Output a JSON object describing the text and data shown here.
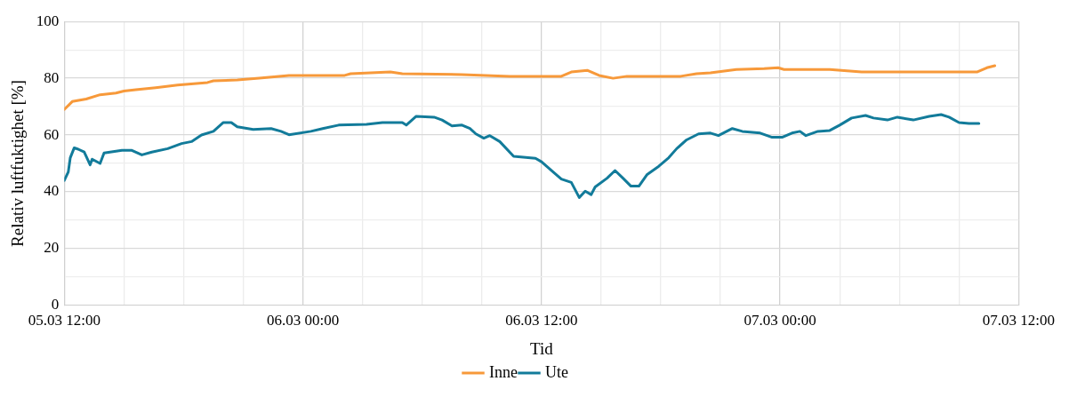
{
  "chart_data": {
    "type": "line",
    "xlabel": "Tid",
    "ylabel": "Relativ luftfuktighet [%]",
    "xlim": [
      "--03-05T12:00",
      "--03-07T12:00"
    ],
    "ylim": [
      0,
      100
    ],
    "xticks": [
      {
        "value": "--03-05T12:00",
        "label": "05.03 12:00"
      },
      {
        "value": "--03-05T15:00",
        "label": null
      },
      {
        "value": "--03-05T18:00",
        "label": null
      },
      {
        "value": "--03-05T21:00",
        "label": null
      },
      {
        "value": "--03-06T00:00",
        "label": "06.03 00:00"
      },
      {
        "value": "--03-06T03:00",
        "label": null
      },
      {
        "value": "--03-06T06:00",
        "label": null
      },
      {
        "value": "--03-06T09:00",
        "label": null
      },
      {
        "value": "--03-06T12:00",
        "label": "06.03 12:00"
      },
      {
        "value": "--03-06T15:00",
        "label": null
      },
      {
        "value": "--03-06T18:00",
        "label": null
      },
      {
        "value": "--03-06T21:00",
        "label": null
      },
      {
        "value": "--03-07T00:00",
        "label": "07.03 00:00"
      },
      {
        "value": "--03-07T03:00",
        "label": null
      },
      {
        "value": "--03-07T06:00",
        "label": null
      },
      {
        "value": "--03-07T09:00",
        "label": null
      },
      {
        "value": "--03-07T12:00",
        "label": "07.03 12:00"
      }
    ],
    "yticks": [
      0,
      {
        "value": 10,
        "label": null
      },
      20,
      {
        "value": 30,
        "label": null
      },
      40,
      {
        "value": 50,
        "label": null
      },
      60,
      {
        "value": 70,
        "label": null
      },
      80,
      {
        "value": 90,
        "label": null
      },
      100
    ],
    "grid": true,
    "legend": "bottom",
    "marker": "none",
    "line_style": "solid",
    "series": [
      {
        "name": "Inne",
        "color": "#f7993a",
        "x": [
          "--03-05T12:00",
          "--03-05T12:24",
          "--03-05T13:06",
          "--03-05T13:48",
          "--03-05T14:36",
          "--03-05T15:00",
          "--03-05T15:36",
          "--03-05T16:36",
          "--03-05T17:42",
          "--03-05T19:12",
          "--03-05T19:30",
          "--03-05T20:42",
          "--03-05T21:48",
          "--03-05T23:18",
          "--03-06T02:06",
          "--03-06T02:24",
          "--03-06T04:24",
          "--03-06T05:00",
          "--03-06T08:00",
          "--03-06T10:24",
          "--03-06T13:00",
          "--03-06T13:30",
          "--03-06T14:18",
          "--03-06T14:54",
          "--03-06T15:36",
          "--03-06T16:18",
          "--03-06T19:00",
          "--03-06T19:48",
          "--03-06T20:30",
          "--03-06T21:48",
          "--03-06T23:12",
          "--03-06T23:54",
          "--03-07T00:12",
          "--03-07T02:30",
          "--03-07T04:06",
          "--03-07T09:54",
          "--03-07T10:24",
          "--03-07T10:48"
        ],
        "values": [
          69,
          71.8,
          72.7,
          74.2,
          74.8,
          75.5,
          76,
          76.7,
          77.6,
          78.5,
          79.1,
          79.4,
          80,
          81,
          81,
          81.6,
          82.2,
          81.6,
          81.3,
          80.7,
          80.7,
          82.2,
          82.8,
          81,
          80,
          80.7,
          80.7,
          81.6,
          81.9,
          83.1,
          83.4,
          83.7,
          83.1,
          83.1,
          82.2,
          82.2,
          83.7,
          84.4
        ]
      },
      {
        "name": "Ute",
        "color": "#127b9a",
        "x": [
          "--03-05T12:00",
          "--03-05T12:12",
          "--03-05T12:18",
          "--03-05T12:30",
          "--03-05T12:42",
          "--03-05T13:00",
          "--03-05T13:18",
          "--03-05T13:24",
          "--03-05T13:48",
          "--03-05T14:00",
          "--03-05T14:54",
          "--03-05T15:24",
          "--03-05T15:54",
          "--03-05T16:24",
          "--03-05T17:12",
          "--03-05T17:54",
          "--03-05T18:24",
          "--03-05T18:54",
          "--03-05T19:30",
          "--03-05T20:00",
          "--03-05T20:24",
          "--03-05T20:42",
          "--03-05T21:30",
          "--03-05T22:24",
          "--03-05T22:54",
          "--03-05T23:18",
          "--03-06T00:24",
          "--03-06T01:00",
          "--03-06T01:48",
          "--03-06T03:12",
          "--03-06T04:00",
          "--03-06T05:00",
          "--03-06T05:12",
          "--03-06T05:42",
          "--03-06T06:36",
          "--03-06T07:00",
          "--03-06T07:30",
          "--03-06T08:00",
          "--03-06T08:24",
          "--03-06T08:42",
          "--03-06T09:06",
          "--03-06T09:24",
          "--03-06T09:54",
          "--03-06T10:36",
          "--03-06T11:42",
          "--03-06T12:00",
          "--03-06T12:36",
          "--03-06T13:00",
          "--03-06T13:30",
          "--03-06T13:54",
          "--03-06T14:12",
          "--03-06T14:30",
          "--03-06T14:42",
          "--03-06T15:18",
          "--03-06T15:42",
          "--03-06T16:06",
          "--03-06T16:30",
          "--03-06T16:54",
          "--03-06T17:18",
          "--03-06T17:54",
          "--03-06T18:24",
          "--03-06T18:48",
          "--03-06T19:18",
          "--03-06T19:54",
          "--03-06T20:30",
          "--03-06T20:54",
          "--03-06T21:36",
          "--03-06T22:06",
          "--03-06T23:00",
          "--03-06T23:36",
          "--03-07T00:06",
          "--03-07T00:36",
          "--03-07T01:00",
          "--03-07T01:18",
          "--03-07T01:54",
          "--03-07T02:30",
          "--03-07T03:00",
          "--03-07T03:36",
          "--03-07T04:18",
          "--03-07T04:42",
          "--03-07T05:24",
          "--03-07T05:54",
          "--03-07T06:42",
          "--03-07T07:30",
          "--03-07T08:06",
          "--03-07T08:30",
          "--03-07T09:00",
          "--03-07T09:30",
          "--03-07T10:00"
        ],
        "values": [
          44,
          47,
          52,
          55.5,
          55,
          54,
          49.5,
          51.5,
          50,
          53.7,
          54.6,
          54.6,
          53,
          54,
          55.2,
          57,
          57.7,
          60,
          61.3,
          64.4,
          64.4,
          62.9,
          62,
          62.3,
          61.3,
          60.1,
          61.3,
          62.3,
          63.5,
          63.8,
          64.4,
          64.4,
          63.5,
          66.6,
          66.3,
          65.3,
          63.2,
          63.5,
          62.3,
          60.4,
          58.9,
          59.8,
          57.7,
          52.5,
          51.8,
          50.6,
          46.9,
          44.5,
          43.3,
          38,
          40.2,
          39,
          41.7,
          44.8,
          47.5,
          44.8,
          42,
          42,
          46,
          49,
          52,
          55.2,
          58.3,
          60.4,
          60.7,
          59.8,
          62.3,
          61.3,
          60.7,
          59.2,
          59.2,
          60.7,
          61.3,
          59.8,
          61.3,
          61.6,
          63.5,
          66,
          66.9,
          66,
          65.3,
          66.3,
          65.3,
          66.6,
          67.2,
          66.3,
          64.4,
          64.1,
          64.1
        ]
      }
    ]
  }
}
